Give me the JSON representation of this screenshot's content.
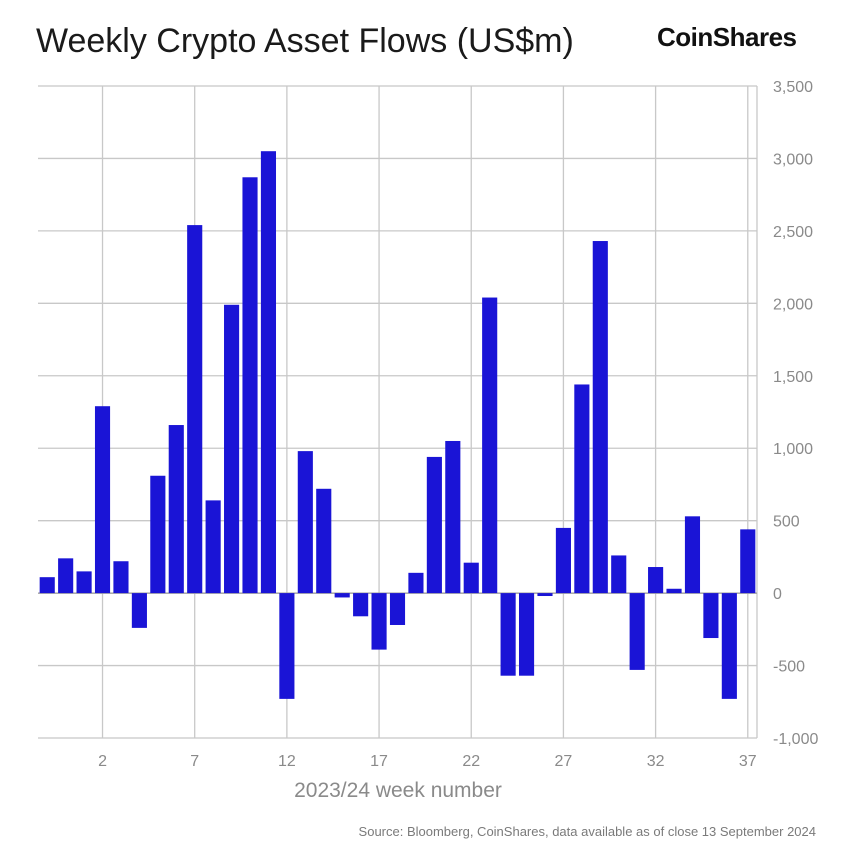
{
  "title": "Weekly Crypto Asset Flows (US$m)",
  "brand": "CoinShares",
  "source": "Source: Bloomberg, CoinShares, data available as of close 13 September 2024",
  "colors": {
    "bar": "#1a14d6",
    "grid": "#c8c8c8",
    "tick": "#8a8a8a"
  },
  "chart_data": {
    "type": "bar",
    "title": "Weekly Crypto Asset Flows (US$m)",
    "xlabel": "2023/24 week number",
    "ylabel": "",
    "ylim": [
      -1000,
      3500
    ],
    "y_ticks": [
      -1000,
      -500,
      0,
      500,
      1000,
      1500,
      2000,
      2500,
      3000,
      3500
    ],
    "y_tick_labels": [
      "-1,000",
      "-500",
      "0",
      "500",
      "1,000",
      "1,500",
      "2,000",
      "2,500",
      "3,000",
      "3,500"
    ],
    "x_tick_labels": [
      "2",
      "7",
      "12",
      "17",
      "22",
      "27",
      "32",
      "37"
    ],
    "grid": true,
    "categories": [
      -1,
      0,
      1,
      2,
      3,
      4,
      5,
      6,
      7,
      8,
      9,
      10,
      11,
      12,
      13,
      14,
      15,
      16,
      17,
      18,
      19,
      20,
      21,
      22,
      23,
      24,
      25,
      26,
      27,
      28,
      29,
      30,
      31,
      32,
      33,
      34,
      35,
      36,
      37
    ],
    "values": [
      110,
      240,
      150,
      1290,
      220,
      -240,
      810,
      1160,
      2540,
      640,
      1990,
      2870,
      3050,
      -730,
      980,
      720,
      -30,
      -160,
      -390,
      -220,
      140,
      940,
      1050,
      210,
      2040,
      -570,
      -570,
      -20,
      450,
      1440,
      2430,
      260,
      -530,
      180,
      30,
      530,
      -310,
      -730,
      440
    ]
  }
}
